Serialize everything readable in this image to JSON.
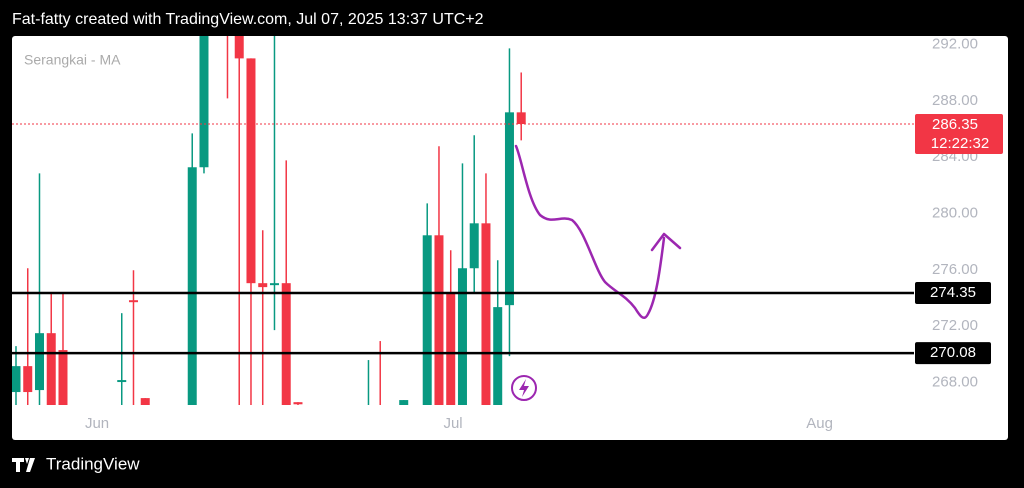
{
  "header": "Fat-fatty created with TradingView.com, Jul 07, 2025 13:37 UTC+2",
  "brand": "TradingView",
  "chart_data": {
    "type": "candlestick",
    "title": "Serangkai - MA",
    "up_color": "#089981",
    "down_color": "#f23645",
    "x": [
      0,
      1,
      2,
      3,
      4,
      9,
      10,
      11,
      15,
      16,
      18,
      19,
      20,
      21,
      22,
      23,
      24,
      30,
      31,
      33,
      35,
      36,
      37,
      38,
      39,
      40,
      41,
      42,
      43
    ],
    "open": [
      267.32,
      269.16,
      267.46,
      271.5,
      270.3,
      268.03,
      273.84,
      266.89,
      265.5,
      283.28,
      293.5,
      293.5,
      291.01,
      275.05,
      274.91,
      275.05,
      266.6,
      265.5,
      266,
      265.5,
      265.5,
      278.45,
      274.41,
      265.5,
      276.11,
      279.3,
      265.5,
      273.49,
      287.18
    ],
    "high": [
      270.58,
      276.11,
      282.85,
      274.41,
      274.41,
      272.92,
      275.97,
      266.89,
      285.69,
      293.5,
      294,
      294,
      291.01,
      278.81,
      293.5,
      283.77,
      266.6,
      269.59,
      270.94,
      266.75,
      280.72,
      284.77,
      277.39,
      283.56,
      285.55,
      282.85,
      276.68,
      291.72,
      290.01
    ],
    "low": [
      265,
      265,
      265,
      265,
      265,
      265,
      265,
      265,
      265,
      282.85,
      288.17,
      265,
      265,
      265,
      271.72,
      265,
      265,
      265,
      265,
      265,
      265,
      265,
      265,
      265,
      274.41,
      265,
      265,
      269.87,
      285.19
    ],
    "close": [
      269.16,
      267.32,
      271.5,
      265.5,
      265.5,
      268.17,
      273.7,
      265.5,
      283.28,
      293.5,
      293,
      291.01,
      275.05,
      274.77,
      275.05,
      265.5,
      266.45,
      266,
      265.5,
      266.75,
      278.45,
      265.5,
      265.5,
      276.11,
      279.3,
      265.5,
      273.35,
      287.18,
      286.35
    ],
    "xlim": [
      -0.34,
      76.09
    ],
    "xticks": [
      {
        "value": 6.9,
        "label": "Jun"
      },
      {
        "value": 37.2,
        "label": "Jul"
      },
      {
        "value": 68.4,
        "label": "Aug"
      }
    ],
    "ylim": [
      266.4,
      292.6
    ],
    "yticks": [
      {
        "value": 268,
        "label": "268.00"
      },
      {
        "value": 272,
        "label": "272.00"
      },
      {
        "value": 276,
        "label": "276.00"
      },
      {
        "value": 280,
        "label": "280.00"
      },
      {
        "value": 284,
        "label": "284.00"
      },
      {
        "value": 288,
        "label": "288.00"
      },
      {
        "value": 292,
        "label": "292.00"
      }
    ],
    "levels": [
      {
        "value": 274.35,
        "label": "274.35"
      },
      {
        "value": 270.08,
        "label": "270.08"
      }
    ],
    "last_price": {
      "value": 286.35,
      "label": "286.35",
      "countdown": "12:22:32"
    }
  }
}
